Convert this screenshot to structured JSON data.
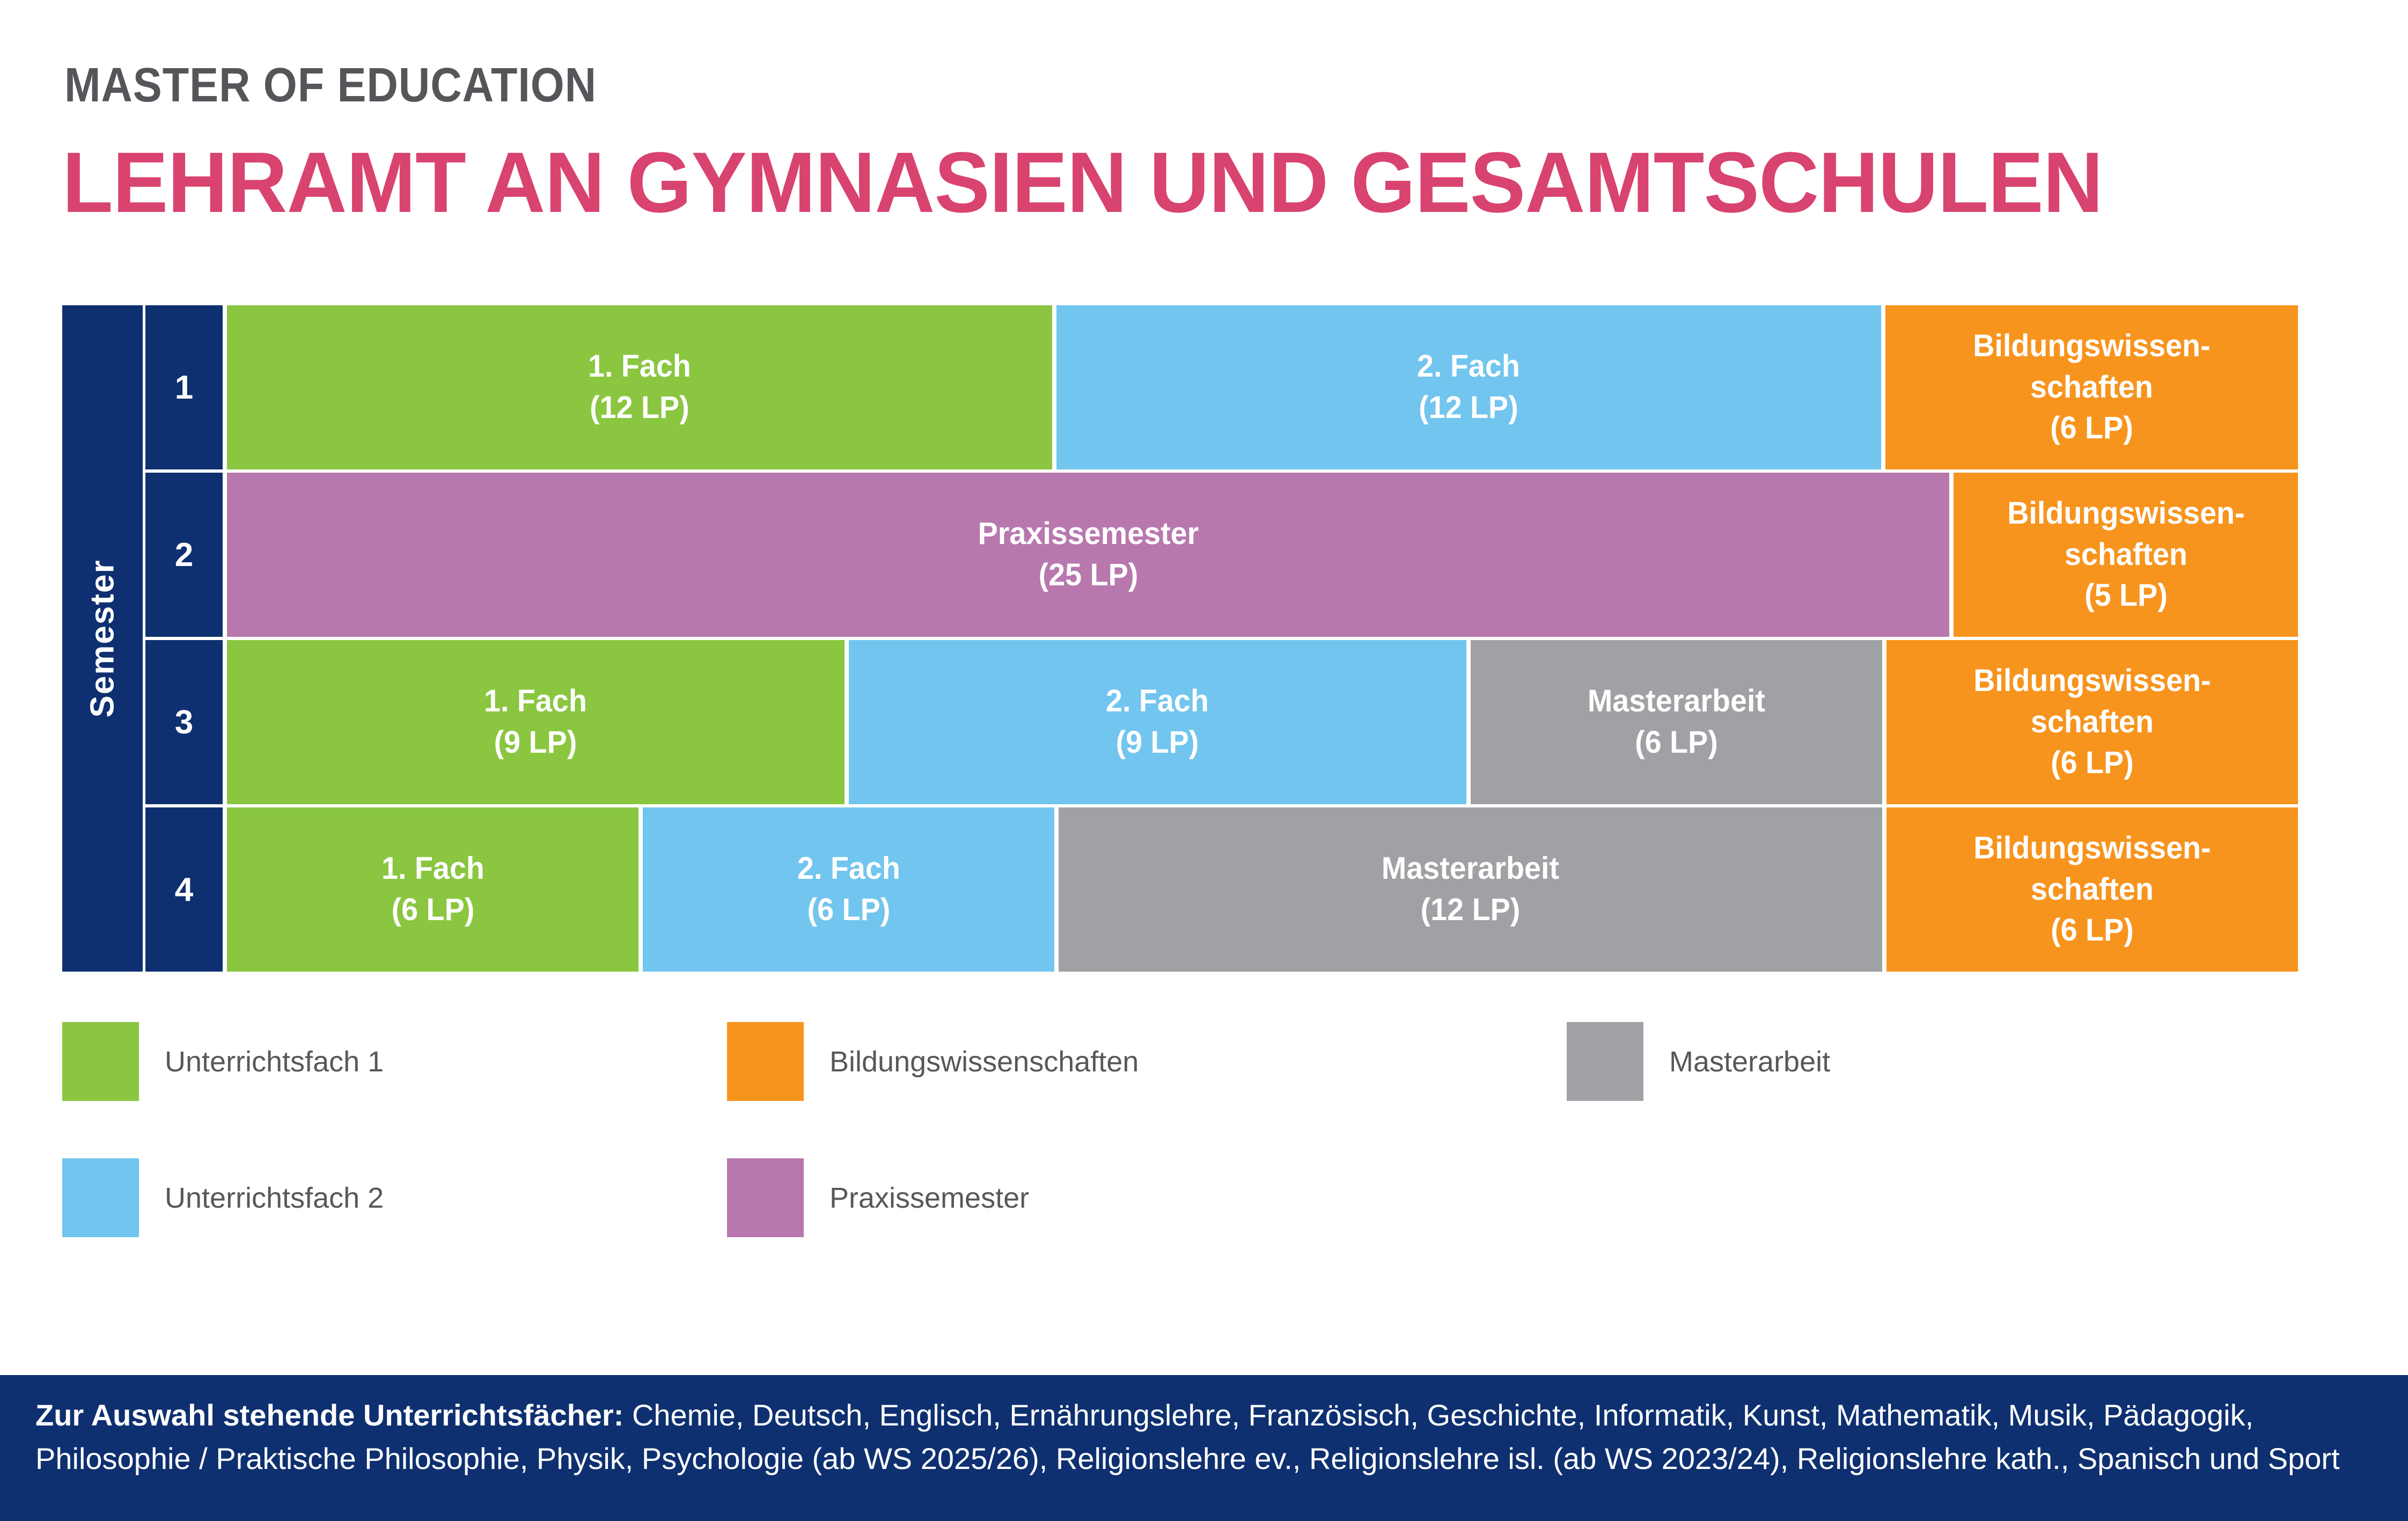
{
  "page": {
    "eyebrow": "MASTER OF EDUCATION",
    "title": "LEHRAMT AN GYMNASIEN UND GESAMTSCHULEN"
  },
  "colors": {
    "navy": "#0E3070",
    "green": "#8AC640",
    "blue": "#72C5EE",
    "orange": "#F7941E",
    "purple": "#B878AE",
    "gray": "#A0A1A4",
    "title_pink": "#D9436F",
    "title_gray": "#54565A",
    "text_white": "#FFFFFF"
  },
  "table": {
    "axis_label": "Semester",
    "rows": [
      {
        "semester": "1",
        "blocks": [
          {
            "type": "fach1",
            "lp": 12,
            "title": "1. Fach",
            "credits": "(12 LP)"
          },
          {
            "type": "fach2",
            "lp": 12,
            "title": "2. Fach",
            "credits": "(12 LP)"
          },
          {
            "type": "bildungswissenschaften",
            "lp": 6,
            "title": "Bildungswissen-\nschaften",
            "credits": "(6 LP)"
          }
        ]
      },
      {
        "semester": "2",
        "blocks": [
          {
            "type": "praxissemester",
            "lp": 25,
            "title": "Praxissemester",
            "credits": "(25 LP)"
          },
          {
            "type": "bildungswissenschaften",
            "lp": 5,
            "title": "Bildungswissen-\nschaften",
            "credits": "(5 LP)"
          }
        ]
      },
      {
        "semester": "3",
        "blocks": [
          {
            "type": "fach1",
            "lp": 9,
            "title": "1. Fach",
            "credits": "(9 LP)"
          },
          {
            "type": "fach2",
            "lp": 9,
            "title": "2. Fach",
            "credits": "(9 LP)"
          },
          {
            "type": "masterarbeit",
            "lp": 6,
            "title": "Masterarbeit",
            "credits": "(6 LP)"
          },
          {
            "type": "bildungswissenschaften",
            "lp": 6,
            "title": "Bildungswissen-\nschaften",
            "credits": "(6 LP)"
          }
        ]
      },
      {
        "semester": "4",
        "blocks": [
          {
            "type": "fach1",
            "lp": 6,
            "title": "1. Fach",
            "credits": "(6 LP)"
          },
          {
            "type": "fach2",
            "lp": 6,
            "title": "2. Fach",
            "credits": "(6 LP)"
          },
          {
            "type": "masterarbeit",
            "lp": 12,
            "title": "Masterarbeit",
            "credits": "(12 LP)"
          },
          {
            "type": "bildungswissenschaften",
            "lp": 6,
            "title": "Bildungswissen-\nschaften",
            "credits": "(6 LP)"
          }
        ]
      }
    ]
  },
  "legend": {
    "items": [
      {
        "label": "Unterrichtsfach 1",
        "color": "green"
      },
      {
        "label": "Unterrichtsfach 2",
        "color": "blue"
      },
      {
        "label": "Bildungswissenschaften",
        "color": "orange"
      },
      {
        "label": "Praxissemester",
        "color": "purple"
      },
      {
        "label": "Masterarbeit",
        "color": "gray"
      }
    ]
  },
  "footer": {
    "intro": "Zur Auswahl stehende Unterrichtsfächer:",
    "subjects": "Chemie, Deutsch, Englisch, Ernährungslehre, Französisch, Geschichte, Informatik, Kunst, Mathematik, Musik, Pädagogik, Philosophie / Praktische Philosophie, Physik, Psychologie (ab WS 2025/26), Religionslehre ev., Religionslehre isl. (ab WS 2023/24), Religionslehre kath., Spanisch und Sport"
  }
}
